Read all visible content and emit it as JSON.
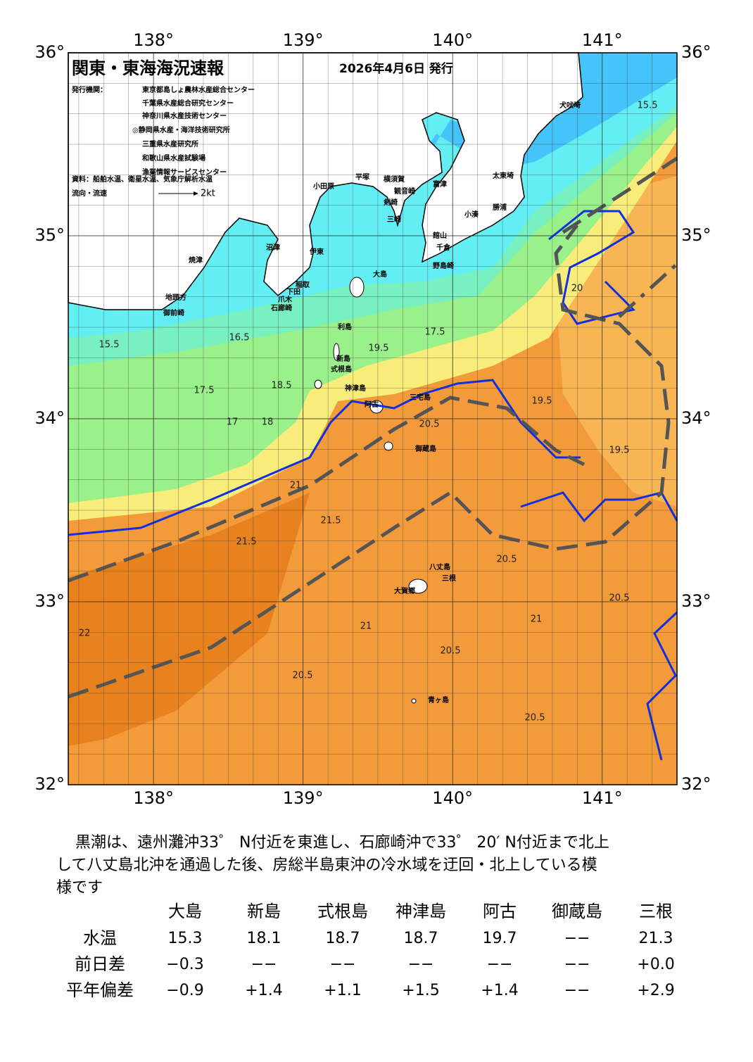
{
  "header": {
    "title": "関東・東海海況速報",
    "date": "2026年4月6日 発行",
    "agency_label": "発行機関：",
    "agencies": [
      "東京都島しょ農林水産総合センター",
      "千葉県水産総合研究センター",
      "神奈川県水産技術センター",
      "◎静岡県水産・海洋技術研究所",
      "三重県水産研究所",
      "和歌山県水産試験場",
      "漁業情報サービスセンター"
    ],
    "source": "資料：船舶水温、衛星水温、気象庁解析水温",
    "legend_label": "流向・流速",
    "legend_speed": "2kt"
  },
  "map": {
    "lonlim": [
      137.43,
      141.5
    ],
    "latlim": [
      32,
      36
    ],
    "lonticks": [
      {
        "value": 138,
        "label": "138°"
      },
      {
        "value": 139,
        "label": "139°"
      },
      {
        "value": 140,
        "label": "140°"
      },
      {
        "value": 141,
        "label": "141°"
      }
    ],
    "latticks": [
      {
        "value": 32,
        "label": "32°"
      },
      {
        "value": 33,
        "label": "33°"
      },
      {
        "value": 34,
        "label": "34°"
      },
      {
        "value": 35,
        "label": "35°"
      },
      {
        "value": 36,
        "label": "36°"
      }
    ],
    "places": [
      "犬吠埼",
      "太東埼",
      "勝浦",
      "小湊",
      "館山",
      "千倉",
      "野島崎",
      "富津",
      "観音崎",
      "剣崎",
      "三崎",
      "横須賀",
      "平塚",
      "小田原",
      "沼津",
      "伊東",
      "焼津",
      "御前崎",
      "地頭方",
      "石廊崎",
      "下田",
      "稲取",
      "爪木",
      "大島",
      "利島",
      "新島",
      "式根島",
      "神津島",
      "三宅島",
      "阿古",
      "御蔵島",
      "八丈島",
      "三根",
      "大賀郷",
      "青ヶ島"
    ],
    "contour_labels": [
      "15.5",
      "15.5",
      "16.5",
      "17",
      "17.5",
      "17.5",
      "18",
      "18.5",
      "19.5",
      "19.5",
      "20",
      "20.5",
      "20.5",
      "20.5",
      "21",
      "21",
      "21.5",
      "21.5",
      "22",
      "20.5",
      "20.5",
      "19.5",
      "21",
      "20.5"
    ]
  },
  "description": [
    "　黒潮は、遠州灘沖33゜ N付近を東進し、石廊崎沖で33゜ 20′ N付近まで北上",
    "して八丈島北沖を通過した後、房総半島東沖の冷水域を迂回・北上している模",
    "様です"
  ],
  "table": {
    "columns": [
      "大島",
      "新島",
      "式根島",
      "神津島",
      "阿古",
      "御蔵島",
      "三根"
    ],
    "rows": [
      {
        "label": "水温",
        "values": [
          "15.3",
          "18.1",
          "18.7",
          "18.7",
          "19.7",
          "−−",
          "21.3"
        ]
      },
      {
        "label": "前日差",
        "values": [
          "−0.3",
          "−−",
          "−−",
          "−−",
          "−−",
          "−−",
          "+0.0"
        ]
      },
      {
        "label": "平年偏差",
        "values": [
          "−0.9",
          "+1.4",
          "+1.1",
          "+1.5",
          "+1.4",
          "−−",
          "+2.9"
        ]
      }
    ]
  }
}
